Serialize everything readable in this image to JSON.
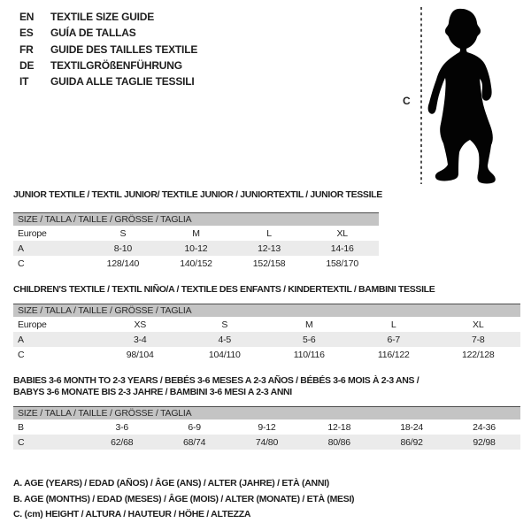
{
  "languages": [
    {
      "code": "EN",
      "label": "TEXTILE SIZE GUIDE"
    },
    {
      "code": "ES",
      "label": "GUÍA DE TALLAS"
    },
    {
      "code": "FR",
      "label": "GUIDE DES TAILLES TEXTILE"
    },
    {
      "code": "DE",
      "label": "TEXTILGRÖßENFÜHRUNG"
    },
    {
      "code": "IT",
      "label": "GUIDA ALLE TAGLIE TESSILI"
    }
  ],
  "figure": {
    "measure_label": "C",
    "silhouette": "toddler-silhouette"
  },
  "tables": [
    {
      "title": "JUNIOR TEXTILE / TEXTIL JUNIOR/ TEXTILE JUNIOR / JUNIORTEXTIL / JUNIOR TESSILE",
      "size_band": "SIZE / TALLA / TAILLE / GRÖSSE / TAGLIA",
      "rows": [
        [
          "Europe",
          "S",
          "M",
          "L",
          "XL"
        ],
        [
          "A",
          "8-10",
          "10-12",
          "12-13",
          "14-16"
        ],
        [
          "C",
          "128/140",
          "140/152",
          "152/158",
          "158/170"
        ]
      ]
    },
    {
      "title": "CHILDREN'S TEXTILE / TEXTIL NIÑO/A / TEXTILE DES ENFANTS / KINDERTEXTIL / BAMBINI TESSILE",
      "size_band": "SIZE / TALLA / TAILLE / GRÖSSE / TAGLIA",
      "rows": [
        [
          "Europe",
          "XS",
          "S",
          "M",
          "L",
          "XL"
        ],
        [
          "A",
          "3-4",
          "4-5",
          "5-6",
          "6-7",
          "7-8"
        ],
        [
          "C",
          "98/104",
          "104/110",
          "110/116",
          "116/122",
          "122/128"
        ]
      ]
    },
    {
      "title_line1": "BABIES 3-6 MONTH TO 2-3 YEARS / BEBÉS 3-6 MESES A 2-3 AÑOS / BÉBÉS 3-6 MOIS À 2-3 ANS /",
      "title_line2": "BABYS 3-6 MONATE BIS 2-3 JAHRE / BAMBINI 3-6 MESI A 2-3 ANNI",
      "size_band": "SIZE / TALLA / TAILLE / GRÖSSE / TAGLIA",
      "rows": [
        [
          "B",
          "3-6",
          "6-9",
          "9-12",
          "12-18",
          "18-24",
          "24-36"
        ],
        [
          "C",
          "62/68",
          "68/74",
          "74/80",
          "80/86",
          "86/92",
          "92/98"
        ]
      ]
    }
  ],
  "legend": [
    "A. AGE (YEARS) / EDAD (AÑOS) / ÂGE (ANS) / ALTER (JAHRE) / ETÀ (ANNI)",
    "B. AGE (MONTHS) / EDAD (MESES) / ÂGE (MOIS) / ALTER (MONATE) / ETÀ (MESI)",
    "C. (cm) HEIGHT / ALTURA / HAUTEUR / HÖHE / ALTEZZA"
  ],
  "colors": {
    "band_bg": "#c4c4c4",
    "band_border": "#4d4d4d",
    "row_shade": "#ebebeb",
    "text": "#1e1e1e",
    "silhouette": "#030303"
  }
}
